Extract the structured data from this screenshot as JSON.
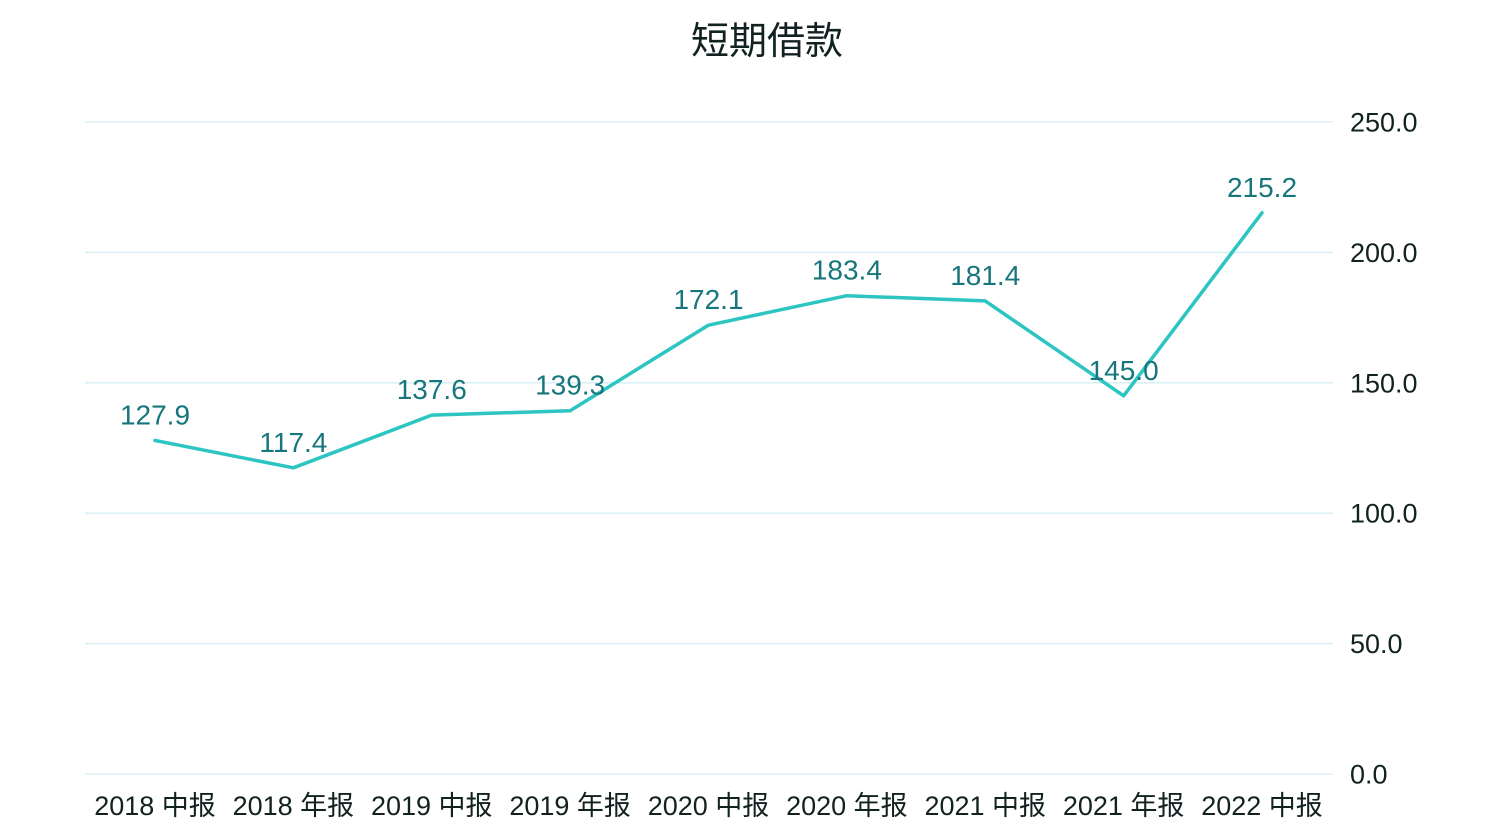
{
  "chart_data": {
    "type": "line",
    "title": "短期借款",
    "categories": [
      "2018 中报",
      "2018 年报",
      "2019 中报",
      "2019 年报",
      "2020 中报",
      "2020 年报",
      "2021 中报",
      "2021 年报",
      "2022 中报"
    ],
    "series": [
      {
        "name": "短期借款",
        "values": [
          127.9,
          117.4,
          137.6,
          139.3,
          172.1,
          183.4,
          181.4,
          145.0,
          215.2
        ]
      }
    ],
    "data_labels": [
      "127.9",
      "117.4",
      "137.6",
      "139.3",
      "172.1",
      "183.4",
      "181.4",
      "145.0",
      "215.2"
    ],
    "y_ticks": [
      {
        "value": 0,
        "label": "0.0"
      },
      {
        "value": 50,
        "label": "50.0"
      },
      {
        "value": 100,
        "label": "100.0"
      },
      {
        "value": 150,
        "label": "150.0"
      },
      {
        "value": 200,
        "label": "200.0"
      },
      {
        "value": 250,
        "label": "250.0"
      }
    ],
    "ylim": [
      0,
      250
    ],
    "y_axis_side": "right",
    "grid": true,
    "legend": false,
    "colors": {
      "line": "#2cc5c2",
      "data_label": "#17767c",
      "grid_line": "#d9f1f4",
      "axis_text": "#122220",
      "title_text": "#122220",
      "background": "#ffffff"
    }
  }
}
